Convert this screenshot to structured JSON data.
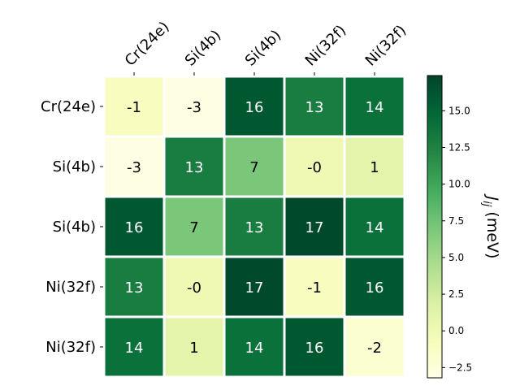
{
  "chart_data": {
    "type": "heatmap",
    "title": "",
    "row_labels": [
      "Cr(24e)",
      "Si(4b)",
      "Si(4b)",
      "Ni(32f)",
      "Ni(32f)"
    ],
    "col_labels": [
      "Cr(24e)",
      "Si(4b)",
      "Si(4b)",
      "Ni(32f)",
      "Ni(32f)"
    ],
    "values": [
      [
        -1,
        -3,
        16,
        13,
        14
      ],
      [
        -3,
        13,
        7,
        0,
        1
      ],
      [
        16,
        7,
        13,
        17,
        14
      ],
      [
        13,
        0,
        17,
        -1,
        16
      ],
      [
        14,
        1,
        14,
        16,
        -2
      ]
    ],
    "display_values": [
      [
        "-1",
        "-3",
        "16",
        "13",
        "14"
      ],
      [
        "-3",
        "13",
        "7",
        "-0",
        "1"
      ],
      [
        "16",
        "7",
        "13",
        "17",
        "14"
      ],
      [
        "13",
        "-0",
        "17",
        "-1",
        "16"
      ],
      [
        "14",
        "1",
        "14",
        "16",
        "-2"
      ]
    ],
    "colormap": "YlGn",
    "vmin": -3.2,
    "vmax": 17.4,
    "colorbar": {
      "label": "J_ij (meV)",
      "label_main": "J",
      "label_sub": "ij",
      "label_unit": " (meV)",
      "ticks": [
        -2.5,
        0.0,
        2.5,
        5.0,
        7.5,
        10.0,
        12.5,
        15.0
      ],
      "tick_labels": [
        "−2.5",
        "0.0",
        "2.5",
        "5.0",
        "7.5",
        "10.0",
        "12.5",
        "15.0"
      ]
    },
    "xlabel_rotation": 45,
    "grid": false
  },
  "colors": {
    "cmap_stops": [
      "#ffffe5",
      "#f7fcb9",
      "#d9f0a3",
      "#addd8e",
      "#78c679",
      "#41ab5d",
      "#238443",
      "#006837",
      "#004529"
    ],
    "text_dark": "#000000",
    "text_light": "#ffffff"
  }
}
